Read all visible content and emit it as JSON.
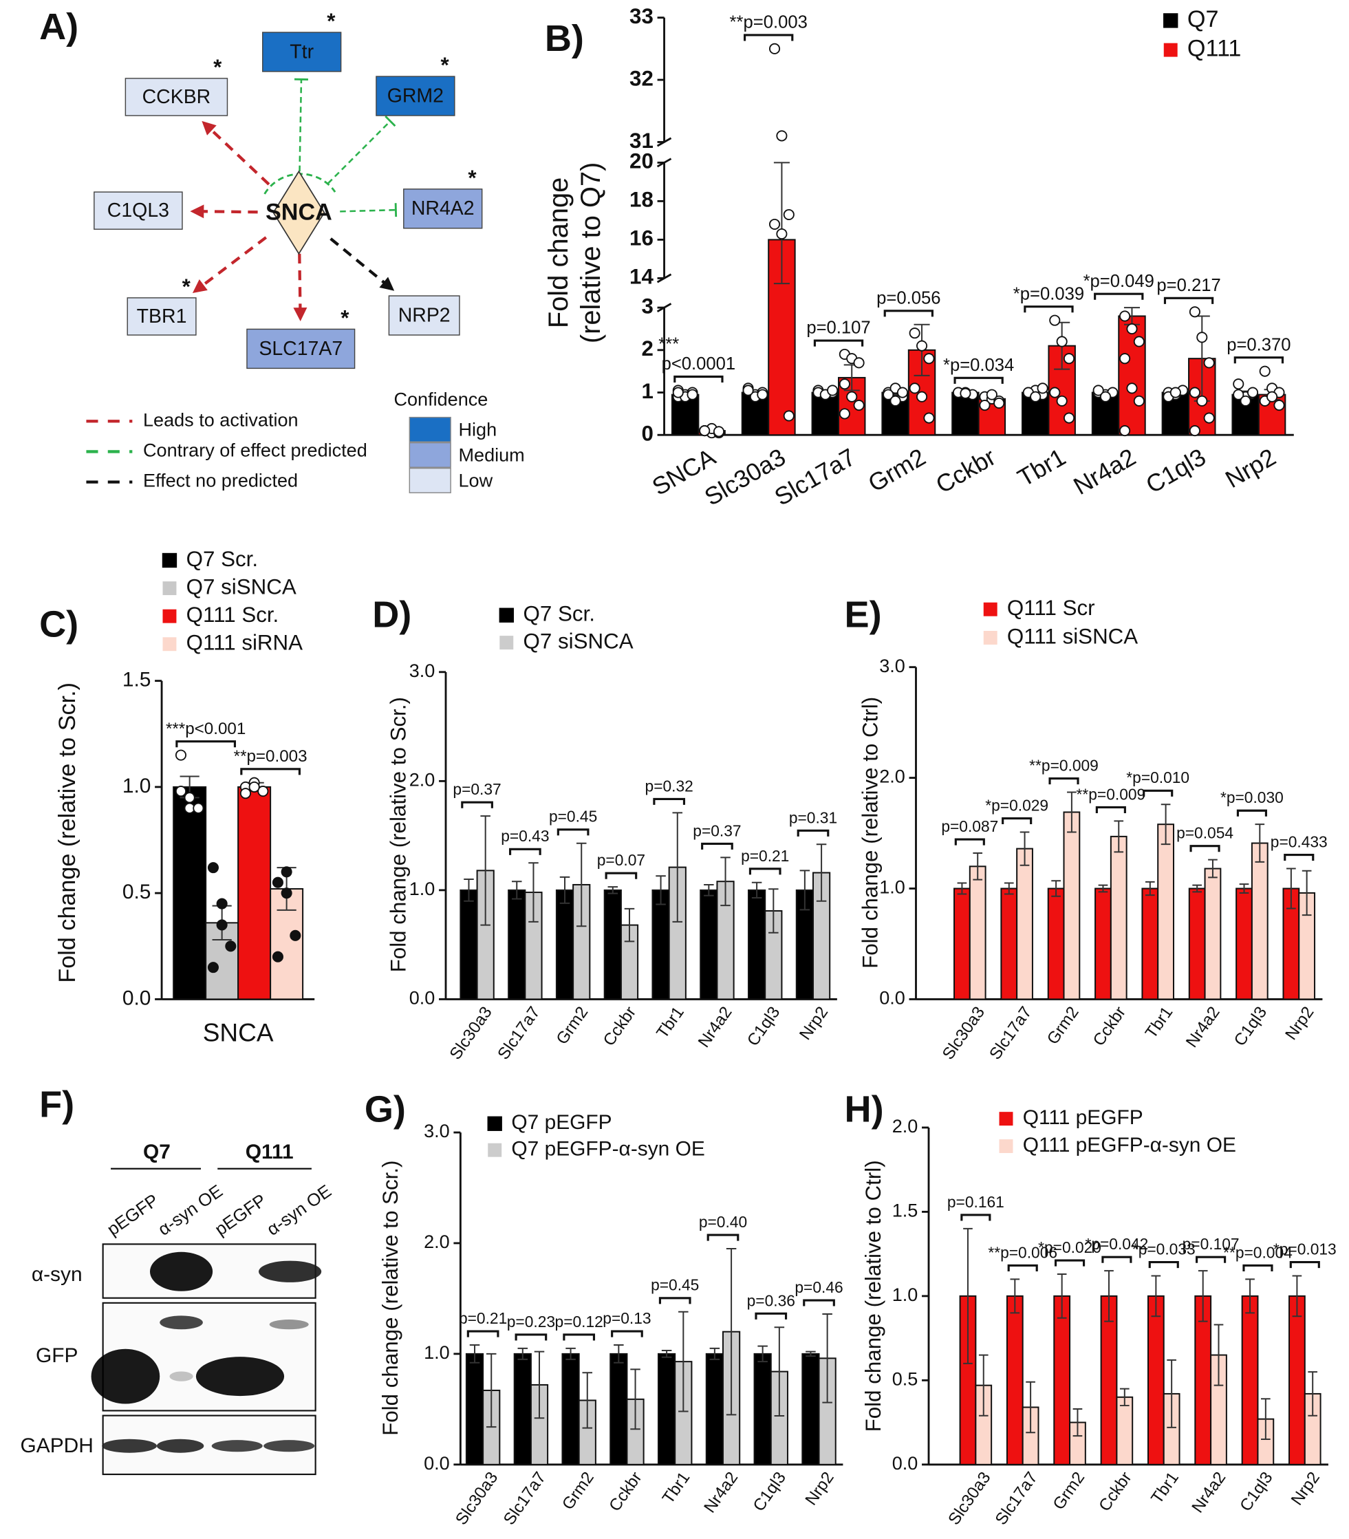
{
  "network": {
    "panel": "A)",
    "center": "SNCA",
    "nodes": [
      {
        "label": "Ttr",
        "confidence": "High",
        "effect": "contrary",
        "significance": "*"
      },
      {
        "label": "GRM2",
        "confidence": "High",
        "effect": "contrary",
        "significance": "*"
      },
      {
        "label": "CCKBR",
        "confidence": "Low",
        "effect": "activation",
        "significance": "*"
      },
      {
        "label": "C1QL3",
        "confidence": "Low",
        "effect": "activation"
      },
      {
        "label": "NR4A2",
        "confidence": "Medium",
        "effect": "contrary",
        "significance": "*"
      },
      {
        "label": "TBR1",
        "confidence": "Low",
        "effect": "activation",
        "significance": "*"
      },
      {
        "label": "SLC17A7",
        "confidence": "Medium",
        "effect": "activation",
        "significance": "*"
      },
      {
        "label": "NRP2",
        "confidence": "Low",
        "effect": "none"
      }
    ],
    "edge_legend": [
      {
        "label": "Leads to activation",
        "effect": "activation",
        "color": "#c3262c"
      },
      {
        "label": "Contrary of effect predicted",
        "effect": "contrary",
        "color": "#2bb24c"
      },
      {
        "label": "Effect no predicted",
        "effect": "none",
        "color": "#111111"
      }
    ],
    "confidence_title": "Confidence",
    "confidence_levels": [
      {
        "label": "High",
        "color": "#1a6fc4"
      },
      {
        "label": "Medium",
        "color": "#8ea6dc"
      },
      {
        "label": "Low",
        "color": "#dde5f4"
      }
    ]
  },
  "blot": {
    "panel": "F)",
    "groups": [
      "Q7",
      "Q111"
    ],
    "lanes": [
      "pEGFP",
      "α-syn OE",
      "pEGFP",
      "α-syn OE"
    ],
    "rows": [
      "α-syn",
      "GFP",
      "GAPDH"
    ]
  },
  "chart_data": [
    {
      "type": "bar",
      "panel": "B)",
      "y_label": [
        "Fold change",
        "(relative to Q7)"
      ],
      "categories": [
        "SNCA",
        "Slc30a3",
        "Slc17a7",
        "Grm2",
        "Cckbr",
        "Tbr1",
        "Nr4a2",
        "C1ql3",
        "Nrp2"
      ],
      "y_segments": [
        {
          "ylim": [
            0,
            3
          ],
          "yticks": [
            0,
            1,
            2,
            3
          ]
        },
        {
          "ylim": [
            14,
            20
          ],
          "yticks": [
            14,
            16,
            18,
            20
          ]
        },
        {
          "ylim": [
            31,
            33
          ],
          "yticks": [
            31,
            32,
            33
          ]
        }
      ],
      "series": [
        {
          "name": "Q7",
          "color": "#000000",
          "values": [
            0.95,
            1.0,
            1.0,
            1.0,
            1.0,
            1.0,
            1.0,
            1.0,
            0.95
          ],
          "errors": [
            0.05,
            0.05,
            0.03,
            0.05,
            0.02,
            0.04,
            0.03,
            0.04,
            0.08
          ],
          "points": [
            [
              0.9,
              0.95,
              1.0,
              1.05,
              0.9,
              0.95,
              1.0
            ],
            [
              1.1,
              0.95,
              1.0,
              1.05,
              0.9,
              0.95,
              1.05
            ],
            [
              1.05,
              0.95,
              1.0,
              1.0,
              0.95,
              1.05
            ],
            [
              1.0,
              1.1,
              0.9,
              0.95,
              0.8,
              1.0
            ],
            [
              1.0,
              1.0,
              0.95,
              1.0,
              0.98
            ],
            [
              1.0,
              1.05,
              0.95,
              1.0,
              0.9,
              1.1
            ],
            [
              1.0,
              0.95,
              1.0,
              1.05,
              0.9
            ],
            [
              1.0,
              0.95,
              1.05,
              0.9,
              1.0
            ],
            [
              1.2,
              0.9,
              1.0,
              0.95,
              0.8
            ]
          ]
        },
        {
          "name": "Q111",
          "color": "#ee1111",
          "values": [
            0.1,
            16,
            1.35,
            2.0,
            0.85,
            2.1,
            2.8,
            1.8,
            0.95
          ],
          "errors": [
            0.03,
            4,
            0.3,
            0.6,
            0.05,
            0.55,
            0.2,
            1.0,
            0.12
          ],
          "points": [
            [
              0.1,
              0.05,
              0.05,
              0.1,
              0.15,
              0.08,
              0.1
            ],
            [
              32.5,
              31.1,
              17.3,
              16.8,
              16.3,
              0.45
            ],
            [
              1.9,
              1.8,
              1.7,
              1.2,
              0.9,
              0.7,
              0.5
            ],
            [
              2.4,
              2.1,
              1.8,
              1.1,
              0.9,
              0.4
            ],
            [
              0.9,
              0.85,
              0.8,
              0.7,
              0.95,
              0.75
            ],
            [
              2.7,
              2.2,
              1.8,
              1.0,
              0.8,
              0.4
            ],
            [
              2.8,
              2.5,
              2.2,
              1.8,
              1.1,
              0.8,
              0.1
            ],
            [
              2.9,
              2.3,
              1.7,
              1.0,
              0.8,
              0.4,
              0.1
            ],
            [
              1.5,
              1.1,
              1.0,
              0.8,
              0.9,
              0.7
            ]
          ]
        }
      ],
      "p_labels": [
        [
          "***",
          "p<0.0001"
        ],
        "**p=0.003",
        "p=0.107",
        "p=0.056",
        "*p=0.034",
        "*p=0.039",
        "*p=0.049",
        "p=0.217",
        "p=0.370"
      ]
    },
    {
      "type": "bar",
      "panel": "C)",
      "y_label": "Fold change (relative to Scr.)",
      "categories": [
        "SNCA"
      ],
      "ylim": [
        0,
        1.5
      ],
      "yticks": [
        {
          "value": 0,
          "label": "0.0"
        },
        {
          "value": 0.5,
          "label": "0.5"
        },
        {
          "value": 1,
          "label": "1.0"
        },
        {
          "value": 1.5,
          "label": "1.5"
        }
      ],
      "series": [
        {
          "name": "Q7 Scr.",
          "color": "#000000",
          "values": [
            1.0
          ],
          "errors": [
            0.05
          ],
          "points": [
            [
              0.98,
              0.9,
              0.9,
              1.15,
              0.95
            ]
          ]
        },
        {
          "name": "Q7 siSNCA",
          "color": "#c8c8c8",
          "values": [
            0.36
          ],
          "errors": [
            0.08
          ],
          "points": [
            [
              0.62,
              0.45,
              0.25,
              0.15,
              0.35
            ]
          ]
        },
        {
          "name": "Q111 Scr.",
          "color": "#ee1111",
          "values": [
            1.0
          ],
          "errors": [
            0.02
          ],
          "points": [
            [
              1.0,
              1.02,
              0.98,
              0.97,
              1.0
            ]
          ]
        },
        {
          "name": "Q111 siRNA",
          "color": "#fcd8cc",
          "values": [
            0.52
          ],
          "errors": [
            0.1
          ],
          "points": [
            [
              0.55,
              0.5,
              0.3,
              0.2,
              0.6
            ]
          ]
        }
      ],
      "p_labels": [
        "***p<0.001",
        "**p=0.003"
      ]
    },
    {
      "type": "bar",
      "panel": "D)",
      "y_label": "Fold change (relative to Scr.)",
      "categories": [
        "Slc30a3",
        "Slc17a7",
        "Grm2",
        "Cckbr",
        "Tbr1",
        "Nr4a2",
        "C1ql3",
        "Nrp2"
      ],
      "ylim": [
        0,
        3
      ],
      "yticks": [
        {
          "value": 0,
          "label": "0.0"
        },
        {
          "value": 1,
          "label": "1.0"
        },
        {
          "value": 2,
          "label": "2.0"
        },
        {
          "value": 3,
          "label": "3.0"
        }
      ],
      "series": [
        {
          "name": "Q7 Scr.",
          "color": "#000000",
          "values": [
            1.0,
            1.0,
            1.0,
            1.0,
            1.0,
            1.0,
            1.0,
            1.0
          ],
          "errors": [
            0.1,
            0.08,
            0.12,
            0.03,
            0.13,
            0.05,
            0.07,
            0.18
          ]
        },
        {
          "name": "Q7 siSNCA",
          "color": "#cccccc",
          "values": [
            1.18,
            0.98,
            1.05,
            0.68,
            1.21,
            1.08,
            0.81,
            1.16
          ],
          "errors": [
            0.5,
            0.27,
            0.38,
            0.15,
            0.5,
            0.22,
            0.2,
            0.26
          ]
        }
      ],
      "p_labels": [
        "p=0.37",
        "p=0.43",
        "p=0.45",
        "p=0.07",
        "p=0.32",
        "p=0.37",
        "p=0.21",
        "p=0.31"
      ]
    },
    {
      "type": "bar",
      "panel": "E)",
      "y_label": "Fold change (relative to Ctrl)",
      "categories": [
        "Slc30a3",
        "Slc17a7",
        "Grm2",
        "Cckbr",
        "Tbr1",
        "Nr4a2",
        "C1ql3",
        "Nrp2"
      ],
      "ylim": [
        0,
        3
      ],
      "yticks": [
        {
          "value": 0,
          "label": "0.0"
        },
        {
          "value": 1,
          "label": "1.0"
        },
        {
          "value": 2,
          "label": "2.0"
        },
        {
          "value": 3,
          "label": "3.0"
        }
      ],
      "series": [
        {
          "name": "Q111 Scr",
          "color": "#ee1111",
          "values": [
            1.0,
            1.0,
            1.0,
            1.0,
            1.0,
            1.0,
            1.0,
            1.0
          ],
          "errors": [
            0.05,
            0.05,
            0.07,
            0.03,
            0.06,
            0.03,
            0.04,
            0.18
          ]
        },
        {
          "name": "Q111 siSNCA",
          "color": "#fcd8cc",
          "values": [
            1.2,
            1.36,
            1.69,
            1.47,
            1.58,
            1.18,
            1.41,
            0.96
          ],
          "errors": [
            0.12,
            0.15,
            0.18,
            0.14,
            0.18,
            0.08,
            0.17,
            0.2
          ]
        }
      ],
      "p_labels": [
        "p=0.087",
        "*p=0.029",
        "**p=0.009",
        "**p=0.009",
        "*p=0.010",
        "p=0.054",
        "*p=0.030",
        "p=0.433"
      ]
    },
    {
      "type": "bar",
      "panel": "G)",
      "y_label": "Fold change (relative to Scr.)",
      "categories": [
        "Slc30a3",
        "Slc17a7",
        "Grm2",
        "Cckbr",
        "Tbr1",
        "Nr4a2",
        "C1ql3",
        "Nrp2"
      ],
      "ylim": [
        0,
        3
      ],
      "yticks": [
        {
          "value": 0,
          "label": "0.0"
        },
        {
          "value": 1,
          "label": "1.0"
        },
        {
          "value": 2,
          "label": "2.0"
        },
        {
          "value": 3,
          "label": "3.0"
        }
      ],
      "series": [
        {
          "name": "Q7 pEGFP",
          "color": "#000000",
          "values": [
            1.0,
            1.0,
            1.0,
            1.0,
            1.0,
            1.0,
            1.0,
            1.0
          ],
          "errors": [
            0.08,
            0.05,
            0.05,
            0.08,
            0.03,
            0.05,
            0.07,
            0.02
          ]
        },
        {
          "name": "Q7 pEGFP-α-syn OE",
          "color": "#cccccc",
          "values": [
            0.67,
            0.72,
            0.58,
            0.59,
            0.93,
            1.2,
            0.84,
            0.96
          ],
          "errors": [
            0.33,
            0.3,
            0.25,
            0.27,
            0.45,
            0.75,
            0.4,
            0.4
          ]
        }
      ],
      "p_labels": [
        "p=0.21",
        "p=0.23",
        "p=0.12",
        "p=0.13",
        "p=0.45",
        "p=0.40",
        "p=0.36",
        "p=0.46"
      ]
    },
    {
      "type": "bar",
      "panel": "H)",
      "y_label": "Fold change (relative to Ctrl)",
      "categories": [
        "Slc30a3",
        "Slc17a7",
        "Grm2",
        "Cckbr",
        "Tbr1",
        "Nr4a2",
        "C1ql3",
        "Nrp2"
      ],
      "ylim": [
        0,
        2
      ],
      "yticks": [
        {
          "value": 0,
          "label": "0.0"
        },
        {
          "value": 0.5,
          "label": "0.5"
        },
        {
          "value": 1,
          "label": "1.0"
        },
        {
          "value": 1.5,
          "label": "1.5"
        },
        {
          "value": 2,
          "label": "2.0"
        }
      ],
      "series": [
        {
          "name": "Q111 pEGFP",
          "color": "#ee1111",
          "values": [
            1.0,
            1.0,
            1.0,
            1.0,
            1.0,
            1.0,
            1.0,
            1.0
          ],
          "errors": [
            0.4,
            0.1,
            0.13,
            0.15,
            0.12,
            0.15,
            0.1,
            0.12
          ]
        },
        {
          "name": "Q111 pEGFP-α-syn OE",
          "color": "#fcd8cc",
          "values": [
            0.47,
            0.34,
            0.25,
            0.4,
            0.42,
            0.65,
            0.27,
            0.42
          ],
          "errors": [
            0.18,
            0.15,
            0.08,
            0.05,
            0.2,
            0.18,
            0.12,
            0.13
          ]
        }
      ],
      "p_labels": [
        "p=0.161",
        "**p=0.006",
        "*p=0.020",
        "*p=0.042",
        "*p=0.033",
        "p=0.107",
        "**p=0.004",
        "*p=0.013"
      ]
    }
  ]
}
